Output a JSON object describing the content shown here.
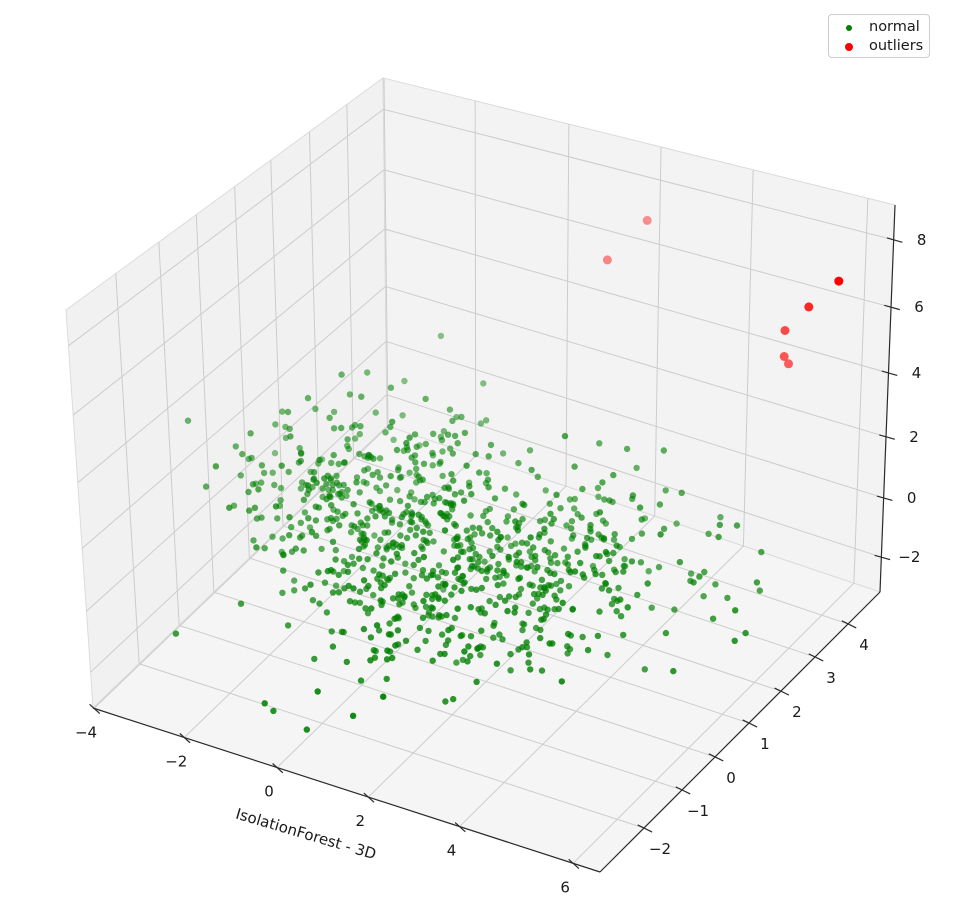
{
  "figure": {
    "background": "#ffffff"
  },
  "chart_data": {
    "type": "scatter",
    "projection": "3d",
    "title": "",
    "xlabel": "IsolationForest - 3D",
    "ylabel": "",
    "zlabel": "",
    "grid": true,
    "legend_position": "upper right",
    "x_ticks": [
      -4,
      -2,
      0,
      2,
      4,
      6
    ],
    "y_ticks": [
      -2,
      -1,
      0,
      1,
      2,
      3,
      4
    ],
    "z_ticks": [
      -2,
      0,
      2,
      4,
      6,
      8
    ],
    "series": [
      {
        "name": "normal",
        "color": "#008000",
        "marker_radius": 3.2,
        "alpha_range": [
          0.45,
          0.95
        ],
        "count": 900,
        "seed": 7,
        "clusters": [
          {
            "n": 300,
            "center": [
              -1.6,
              1.3,
              0.2
            ],
            "std": [
              1.15,
              1.05,
              0.85
            ]
          },
          {
            "n": 360,
            "center": [
              0.9,
              0.1,
              -0.1
            ],
            "std": [
              1.25,
              1.15,
              0.85
            ]
          },
          {
            "n": 240,
            "center": [
              3.1,
              1.3,
              -0.2
            ],
            "std": [
              1.15,
              1.15,
              0.8
            ]
          }
        ]
      },
      {
        "name": "outliers",
        "color": "#ff0000",
        "marker_radius": 4.5,
        "alpha_range": [
          0.42,
          1.0
        ],
        "points": [
          [
            2.3,
            4.2,
            7.6
          ],
          [
            1.9,
            3.6,
            6.8
          ],
          [
            6.2,
            3.8,
            7.8
          ],
          [
            5.7,
            3.8,
            6.8
          ],
          [
            5.3,
            3.8,
            5.9
          ],
          [
            5.3,
            3.8,
            5.1
          ],
          [
            5.35,
            3.85,
            4.85
          ]
        ]
      }
    ]
  },
  "legend": {
    "items": [
      {
        "label": "normal",
        "color": "#008000",
        "marker_diameter": 6
      },
      {
        "label": "outliers",
        "color": "#ff0000",
        "marker_diameter": 8
      }
    ]
  },
  "style": {
    "pane_left": "#f1f1f1",
    "pane_right": "#f3f3f3",
    "pane_bottom": "#f5f5f5",
    "pane_edge": "#d9d9d9",
    "grid_color": "#cccccc",
    "axis_color": "#2b2b2b",
    "tick_label_color": "#1a1a1a"
  }
}
